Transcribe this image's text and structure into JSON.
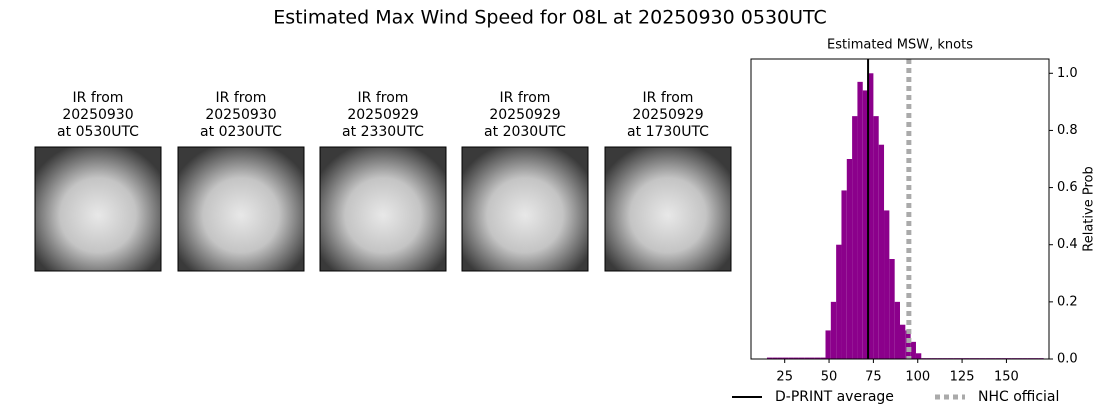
{
  "title": "Estimated Max Wind Speed for 08L at 20250930 0530UTC",
  "panels": [
    {
      "title_lines": [
        "IR from",
        "20250930",
        "at 0530UTC"
      ]
    },
    {
      "title_lines": [
        "IR from",
        "20250930",
        "at 0230UTC"
      ]
    },
    {
      "title_lines": [
        "IR from",
        "20250929",
        "at 2330UTC"
      ]
    },
    {
      "title_lines": [
        "IR from",
        "20250929",
        "at 2030UTC"
      ]
    },
    {
      "title_lines": [
        "IR from",
        "20250929",
        "at 1730UTC"
      ]
    }
  ],
  "chart_data": {
    "type": "histogram",
    "title": "Estimated MSW, knots",
    "ylabel": "Relative Prob",
    "color": "#8b008b",
    "bins": [
      15,
      18,
      21,
      24,
      27,
      30,
      33,
      36,
      39,
      42,
      45,
      48,
      51,
      54,
      57,
      60,
      63,
      66,
      69,
      72,
      75,
      78,
      81,
      84,
      87,
      90,
      93,
      96,
      99,
      102,
      105,
      108,
      111,
      114,
      117,
      120,
      123,
      126,
      129,
      132,
      135,
      138,
      141,
      144,
      147,
      150,
      153,
      156,
      159,
      162,
      165,
      168,
      171
    ],
    "values": [
      0.005,
      0.005,
      0.005,
      0.005,
      0.005,
      0.005,
      0.005,
      0.005,
      0.005,
      0.005,
      0.005,
      0.1,
      0.2,
      0.4,
      0.59,
      0.7,
      0.85,
      0.97,
      0.94,
      1.0,
      0.85,
      0.75,
      0.52,
      0.35,
      0.2,
      0.12,
      0.1,
      0.06,
      0.02,
      0.003,
      0.003,
      0.003,
      0.003,
      0.003,
      0.003,
      0.003,
      0.003,
      0.003,
      0.003,
      0.003,
      0.003,
      0.003,
      0.003,
      0.003,
      0.003,
      0.003,
      0.003,
      0.003,
      0.003,
      0.003,
      0.003,
      0.003
    ],
    "xlim": [
      6,
      174
    ],
    "xticks": [
      25,
      50,
      75,
      100,
      125,
      150
    ],
    "ylim": [
      0,
      1.05
    ],
    "yticks": [
      {
        "value": 0,
        "label": "0.0"
      },
      0.2,
      0.4,
      0.6,
      0.8,
      {
        "value": 1,
        "label": "1.0"
      }
    ],
    "yaxis_side": "right",
    "lines": [
      {
        "name": "D-PRINT average",
        "x": 72,
        "color": "#000000",
        "style": "solid"
      },
      {
        "name": "NHC official",
        "x": 95,
        "color": "#aaaaaa",
        "style": "dotted"
      }
    ],
    "legend": "lower center"
  }
}
